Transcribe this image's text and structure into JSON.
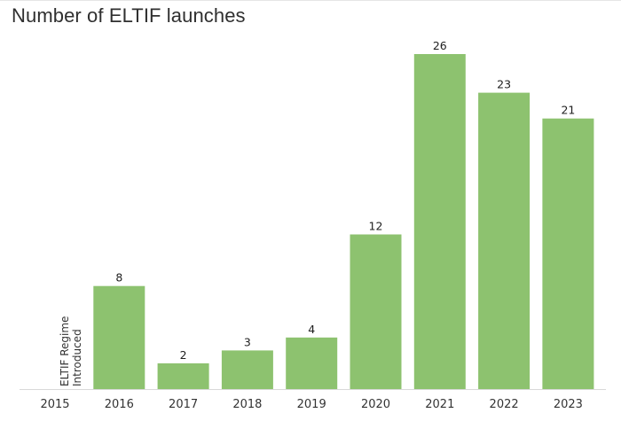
{
  "chart_data": {
    "type": "bar",
    "title": "Number of ELTIF launches",
    "categories": [
      "2015",
      "2016",
      "2017",
      "2018",
      "2019",
      "2020",
      "2021",
      "2022",
      "2023"
    ],
    "values": [
      null,
      8,
      2,
      3,
      4,
      12,
      26,
      23,
      21
    ],
    "xlabel": "",
    "ylabel": "",
    "ylim": [
      0,
      26
    ],
    "grid": false,
    "bar_color": "#8dc26f",
    "annotation": {
      "category": "2015",
      "lines": [
        "ELTIF Regime",
        "Introduced"
      ]
    }
  }
}
